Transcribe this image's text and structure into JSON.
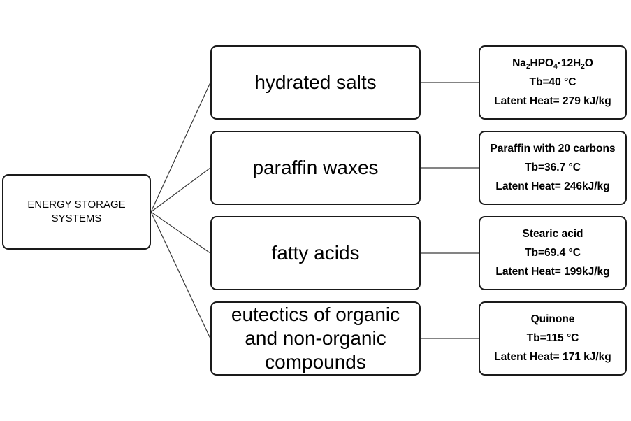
{
  "root": {
    "line1": "ENERGY STORAGE",
    "line2": "SYSTEMS"
  },
  "categories": [
    {
      "label": "hydrated salts"
    },
    {
      "label": "paraffin waxes"
    },
    {
      "label": "fatty acids"
    },
    {
      "line1": "eutectics of organic",
      "line2": "and non-organic",
      "line3": "compounds"
    }
  ],
  "details": [
    {
      "formula": {
        "p1": "Na",
        "s1": "2",
        "p2": "HPO",
        "s2": "4",
        "p3": "·12H",
        "s3": "2",
        "p4": "O"
      },
      "tb": "Tb=40 °C",
      "latent": "Latent Heat= 279 kJ/kg"
    },
    {
      "name": "Paraffin with 20 carbons",
      "tb": "Tb=36.7 °C",
      "latent": "Latent Heat= 246kJ/kg"
    },
    {
      "name": "Stearic acid",
      "tb": "Tb=69.4 °C",
      "latent": "Latent Heat= 199kJ/kg"
    },
    {
      "name": "Quinone",
      "tb": "Tb=115 °C",
      "latent": "Latent Heat= 171 kJ/kg"
    }
  ]
}
